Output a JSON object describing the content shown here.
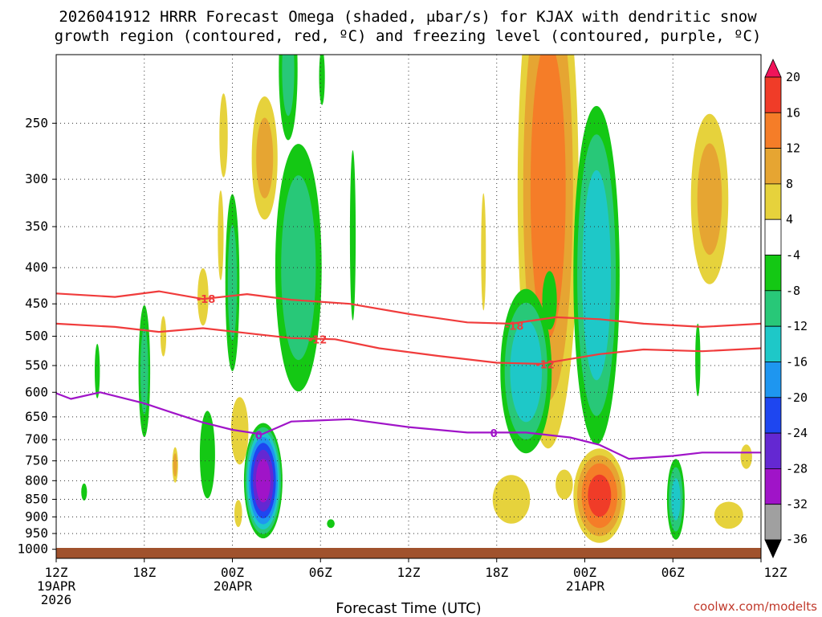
{
  "title": {
    "line1": "2026041912 HRRR Forecast Omega (shaded, μbar/s) for KJAX with dendritic snow",
    "line2": "growth region (contoured, red, ºC) and freezing level (contoured, purple, ºC)"
  },
  "xlabel": "Forecast Time (UTC)",
  "credit": "coolwx.com/modelts",
  "date_labels": [
    {
      "at": 0,
      "lines": [
        "19APR",
        "2026"
      ]
    },
    {
      "at": 12,
      "lines": [
        "20APR"
      ]
    },
    {
      "at": 36,
      "lines": [
        "21APR"
      ]
    }
  ],
  "chart_data": {
    "type": "heatmap",
    "x_range_hours": [
      0,
      48
    ],
    "x_ticks": [
      {
        "hour": 0,
        "label": "12Z"
      },
      {
        "hour": 6,
        "label": "18Z"
      },
      {
        "hour": 12,
        "label": "00Z"
      },
      {
        "hour": 18,
        "label": "06Z"
      },
      {
        "hour": 24,
        "label": "12Z"
      },
      {
        "hour": 30,
        "label": "18Z"
      },
      {
        "hour": 36,
        "label": "00Z"
      },
      {
        "hour": 42,
        "label": "06Z"
      },
      {
        "hour": 48,
        "label": "12Z"
      }
    ],
    "y_range_hpa": [
      1030,
      200
    ],
    "y_ticks": [
      250,
      300,
      350,
      400,
      450,
      500,
      550,
      600,
      650,
      700,
      750,
      800,
      850,
      900,
      950,
      1000
    ],
    "colorbar": {
      "labels": [
        "20",
        "16",
        "12",
        "8",
        "4",
        "-4",
        "-8",
        "-12",
        "-16",
        "-20",
        "-24",
        "-28",
        "-32",
        "-36"
      ],
      "colors": [
        "#f0145a",
        "#f03c28",
        "#f57d28",
        "#e6a532",
        "#e6d23c",
        "#ffffff",
        "#14c814",
        "#28c878",
        "#1ec8c8",
        "#1e96f0",
        "#1e46f0",
        "#6428d2",
        "#a014c8",
        "#a0a0a0",
        "#000000"
      ]
    },
    "omega_features": [
      {
        "t": 2.8,
        "p": 560,
        "rx": 0.25,
        "ry": 70,
        "v": -6
      },
      {
        "t": 6.0,
        "p": 560,
        "rx": 0.5,
        "ry": 150,
        "v": -9
      },
      {
        "t": 1.9,
        "p": 830,
        "rx": 0.3,
        "ry": 35,
        "v": -5
      },
      {
        "t": 7.3,
        "p": 500,
        "rx": 0.3,
        "ry": 50,
        "v": 5
      },
      {
        "t": 8.1,
        "p": 760,
        "rx": 0.25,
        "ry": 55,
        "v": 9
      },
      {
        "t": 10.0,
        "p": 440,
        "rx": 0.5,
        "ry": 55,
        "v": 7
      },
      {
        "t": 10.3,
        "p": 735,
        "rx": 0.7,
        "ry": 140,
        "v": -7
      },
      {
        "t": 11.2,
        "p": 360,
        "rx": 0.3,
        "ry": 80,
        "v": 5
      },
      {
        "t": 11.4,
        "p": 260,
        "rx": 0.4,
        "ry": 50,
        "v": 6
      },
      {
        "t": 12.0,
        "p": 420,
        "rx": 0.6,
        "ry": 150,
        "v": -9
      },
      {
        "t": 12.5,
        "p": 680,
        "rx": 0.8,
        "ry": 100,
        "v": 7
      },
      {
        "t": 12.4,
        "p": 890,
        "rx": 0.4,
        "ry": 60,
        "v": 5
      },
      {
        "t": 14.1,
        "p": 800,
        "rx": 1.4,
        "ry": 160,
        "v": -30
      },
      {
        "t": 14.2,
        "p": 280,
        "rx": 1.1,
        "ry": 70,
        "v": 9
      },
      {
        "t": 16.5,
        "p": 400,
        "rx": 1.9,
        "ry": 190,
        "v": -11
      },
      {
        "t": 15.8,
        "p": 210,
        "rx": 0.8,
        "ry": 60,
        "v": -9
      },
      {
        "t": 18.1,
        "p": 215,
        "rx": 0.3,
        "ry": 30,
        "v": -5
      },
      {
        "t": 18.7,
        "p": 920,
        "rx": 0.4,
        "ry": 20,
        "v": -5
      },
      {
        "t": 20.2,
        "p": 360,
        "rx": 0.3,
        "ry": 150,
        "v": -5
      },
      {
        "t": 29.1,
        "p": 380,
        "rx": 0.25,
        "ry": 110,
        "v": 5
      },
      {
        "t": 33.5,
        "p": 310,
        "rx": 2.4,
        "ry": 280,
        "v": 14
      },
      {
        "t": 32.0,
        "p": 560,
        "rx": 2.0,
        "ry": 170,
        "v": -15
      },
      {
        "t": 33.6,
        "p": 445,
        "rx": 0.7,
        "ry": 60,
        "v": -6
      },
      {
        "t": 36.8,
        "p": 410,
        "rx": 1.8,
        "ry": 250,
        "v": -15
      },
      {
        "t": 31.0,
        "p": 850,
        "rx": 1.8,
        "ry": 95,
        "v": 6
      },
      {
        "t": 34.6,
        "p": 810,
        "rx": 0.9,
        "ry": 60,
        "v": 5
      },
      {
        "t": 37.0,
        "p": 840,
        "rx": 2.0,
        "ry": 145,
        "v": 17
      },
      {
        "t": 42.2,
        "p": 850,
        "rx": 0.7,
        "ry": 130,
        "v": -13
      },
      {
        "t": 43.7,
        "p": 540,
        "rx": 0.25,
        "ry": 90,
        "v": -6
      },
      {
        "t": 44.5,
        "p": 320,
        "rx": 1.6,
        "ry": 110,
        "v": 9
      },
      {
        "t": 45.8,
        "p": 895,
        "rx": 1.5,
        "ry": 60,
        "v": 5
      },
      {
        "t": 47.0,
        "p": 740,
        "rx": 0.6,
        "ry": 45,
        "v": 5
      }
    ],
    "isotherm_m18": {
      "label": "-18",
      "color": "#f03c3c",
      "label_at": [
        {
          "t": 10.2,
          "p": 443
        },
        {
          "t": 31.2,
          "p": 483
        }
      ],
      "points": [
        [
          0,
          435
        ],
        [
          4,
          440
        ],
        [
          7,
          432
        ],
        [
          10,
          443
        ],
        [
          13,
          436
        ],
        [
          16,
          444
        ],
        [
          20,
          450
        ],
        [
          24,
          465
        ],
        [
          28,
          478
        ],
        [
          31,
          480
        ],
        [
          34,
          470
        ],
        [
          37,
          473
        ],
        [
          40,
          480
        ],
        [
          44,
          485
        ],
        [
          48,
          480
        ]
      ]
    },
    "isotherm_m12": {
      "label": "-12",
      "color": "#f03c3c",
      "label_at": [
        {
          "t": 17.8,
          "p": 505
        },
        {
          "t": 33.3,
          "p": 548
        }
      ],
      "points": [
        [
          0,
          480
        ],
        [
          4,
          485
        ],
        [
          7,
          493
        ],
        [
          10,
          487
        ],
        [
          13,
          495
        ],
        [
          16,
          503
        ],
        [
          19,
          505
        ],
        [
          22,
          520
        ],
        [
          26,
          533
        ],
        [
          30,
          545
        ],
        [
          33,
          547
        ],
        [
          37,
          530
        ],
        [
          40,
          522
        ],
        [
          44,
          525
        ],
        [
          48,
          520
        ]
      ]
    },
    "freezing_level": {
      "label": "0",
      "color": "#a014c8",
      "label_at": [
        {
          "t": 13.8,
          "p": 690
        },
        {
          "t": 29.8,
          "p": 685
        }
      ],
      "points": [
        [
          0,
          602
        ],
        [
          1,
          613
        ],
        [
          3,
          600
        ],
        [
          6,
          622
        ],
        [
          8,
          642
        ],
        [
          10,
          662
        ],
        [
          12,
          678
        ],
        [
          14,
          688
        ],
        [
          16,
          660
        ],
        [
          20,
          655
        ],
        [
          24,
          672
        ],
        [
          28,
          684
        ],
        [
          32,
          684
        ],
        [
          35,
          695
        ],
        [
          37,
          712
        ],
        [
          39,
          745
        ],
        [
          42,
          738
        ],
        [
          44,
          730
        ],
        [
          48,
          730
        ]
      ]
    }
  }
}
